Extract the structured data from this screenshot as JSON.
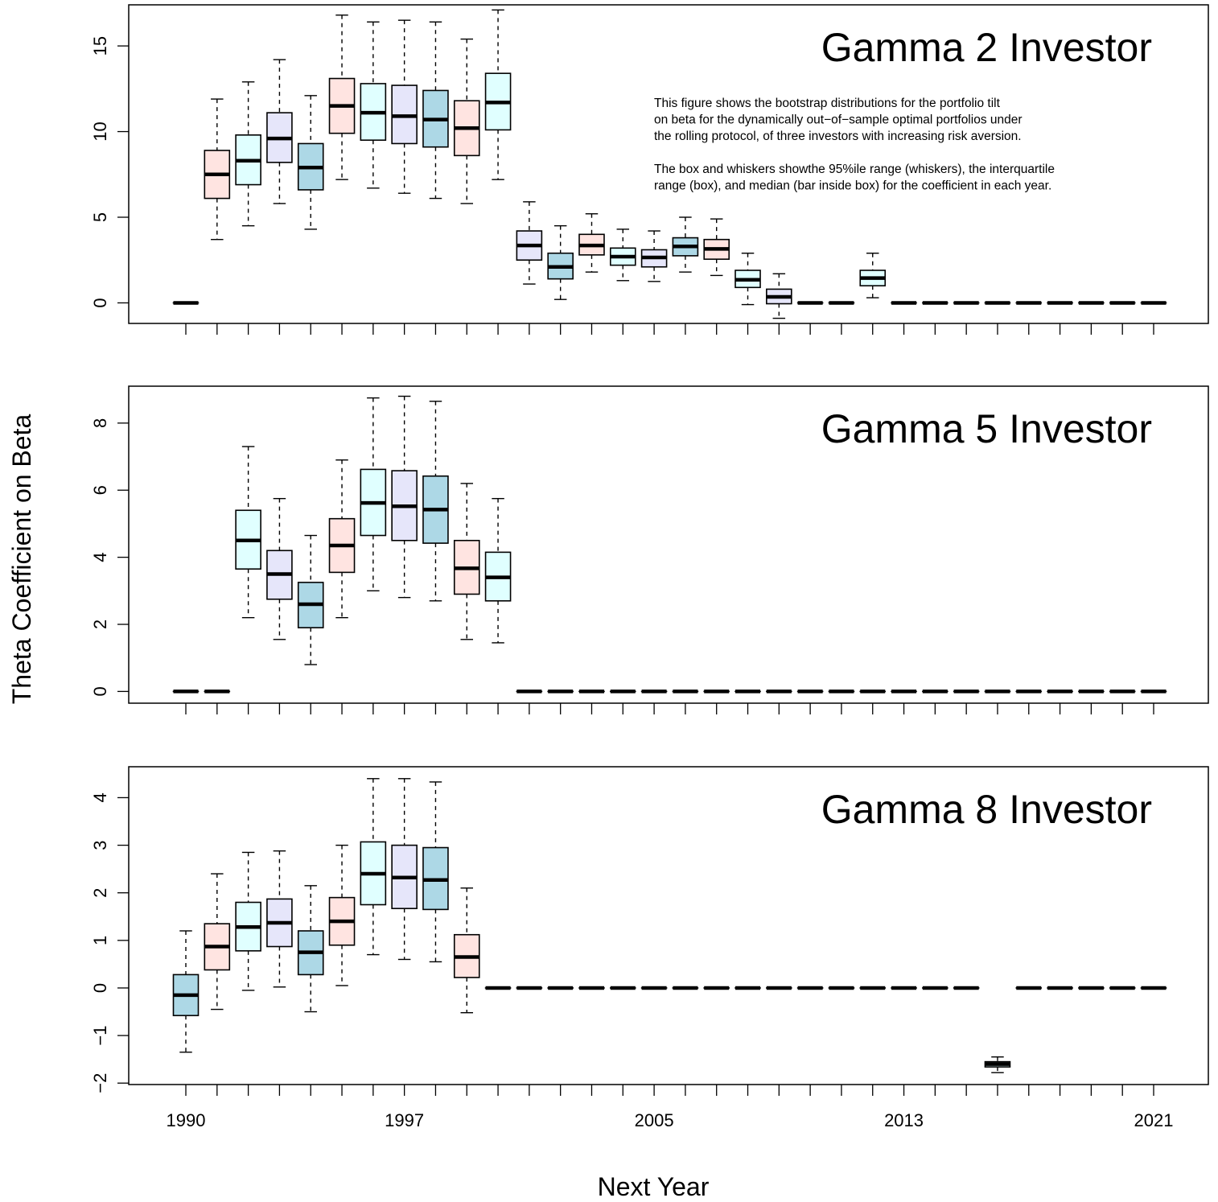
{
  "figure": {
    "ylabel": "Theta Coefficient on Beta",
    "xlabel": "Next Year",
    "note_lines": [
      "This figure shows the bootstrap distributions for the portfolio tilt",
      "on beta for the dynamically out−of−sample optimal portfolios under",
      "the rolling protocol, of three investors with increasing risk aversion.",
      "",
      "The box and whiskers showthe 95%ile range (whiskers), the interquartile",
      "range (box), and median (bar inside box) for the coefficient in each year."
    ],
    "x_tick_labels": [
      "1990",
      "1997",
      "2005",
      "2013",
      "2021"
    ]
  },
  "colors": {
    "pink": "#FFE4E1",
    "cyan": "#E0FFFF",
    "lavender": "#E6E6FA",
    "lightblue": "#ADD8E6"
  },
  "chart_data": [
    {
      "type": "boxplot",
      "title": "Gamma 2 Investor",
      "ylim": [
        -1.2,
        17.4
      ],
      "yticks": [
        0,
        5,
        10,
        15
      ],
      "years": [
        1990,
        1991,
        1992,
        1993,
        1994,
        1995,
        1996,
        1997,
        1998,
        1999,
        2000,
        2001,
        2002,
        2003,
        2004,
        2005,
        2006,
        2007,
        2008,
        2009,
        2010,
        2011,
        2012,
        2013,
        2014,
        2015,
        2016,
        2017,
        2018,
        2019,
        2020,
        2021
      ],
      "boxes": [
        [
          0,
          0,
          0,
          0,
          0,
          "pink"
        ],
        [
          3.7,
          6.1,
          7.5,
          8.9,
          11.9,
          "pink"
        ],
        [
          4.5,
          6.9,
          8.3,
          9.8,
          12.9,
          "cyan"
        ],
        [
          5.8,
          8.2,
          9.6,
          11.1,
          14.2,
          "lavender"
        ],
        [
          4.3,
          6.6,
          7.9,
          9.3,
          12.1,
          "lightblue"
        ],
        [
          7.2,
          9.9,
          11.5,
          13.1,
          16.8,
          "pink"
        ],
        [
          6.7,
          9.5,
          11.1,
          12.8,
          16.4,
          "cyan"
        ],
        [
          6.4,
          9.3,
          10.9,
          12.7,
          16.5,
          "lavender"
        ],
        [
          6.1,
          9.1,
          10.7,
          12.4,
          16.4,
          "lightblue"
        ],
        [
          5.8,
          8.6,
          10.2,
          11.8,
          15.4,
          "pink"
        ],
        [
          7.2,
          10.1,
          11.7,
          13.4,
          17.1,
          "cyan"
        ],
        [
          1.1,
          2.5,
          3.35,
          4.2,
          5.9,
          "lavender"
        ],
        [
          0.2,
          1.4,
          2.1,
          2.9,
          4.5,
          "lightblue"
        ],
        [
          1.8,
          2.8,
          3.35,
          4.0,
          5.2,
          "pink"
        ],
        [
          1.3,
          2.2,
          2.7,
          3.2,
          4.3,
          "cyan"
        ],
        [
          1.25,
          2.1,
          2.65,
          3.1,
          4.2,
          "lavender"
        ],
        [
          1.8,
          2.75,
          3.3,
          3.8,
          5.0,
          "lightblue"
        ],
        [
          1.6,
          2.55,
          3.15,
          3.7,
          4.9,
          "pink"
        ],
        [
          -0.1,
          0.9,
          1.35,
          1.9,
          2.9,
          "cyan"
        ],
        [
          -0.9,
          -0.05,
          0.35,
          0.8,
          1.7,
          "lavender"
        ],
        [
          0,
          0,
          0,
          0,
          0,
          "lightblue"
        ],
        [
          0,
          0,
          0,
          0,
          0,
          "pink"
        ],
        [
          0.3,
          1.0,
          1.45,
          1.9,
          2.9,
          "cyan"
        ],
        [
          0,
          0,
          0,
          0,
          0,
          "lavender"
        ],
        [
          0,
          0,
          0,
          0,
          0,
          "lightblue"
        ],
        [
          0,
          0,
          0,
          0,
          0,
          "pink"
        ],
        [
          0,
          0,
          0,
          0,
          0,
          "cyan"
        ],
        [
          0,
          0,
          0,
          0,
          0,
          "lavender"
        ],
        [
          0,
          0,
          0,
          0,
          0,
          "lightblue"
        ],
        [
          0,
          0,
          0,
          0,
          0,
          "pink"
        ],
        [
          0,
          0,
          0,
          0,
          0,
          "cyan"
        ],
        [
          0,
          0,
          0,
          0,
          0,
          "lavender"
        ]
      ]
    },
    {
      "type": "boxplot",
      "title": "Gamma 5 Investor",
      "ylim": [
        -0.35,
        9.1
      ],
      "yticks": [
        0,
        2,
        4,
        6,
        8
      ],
      "years": [
        1990,
        1991,
        1992,
        1993,
        1994,
        1995,
        1996,
        1997,
        1998,
        1999,
        2000,
        2001,
        2002,
        2003,
        2004,
        2005,
        2006,
        2007,
        2008,
        2009,
        2010,
        2011,
        2012,
        2013,
        2014,
        2015,
        2016,
        2017,
        2018,
        2019,
        2020,
        2021
      ],
      "boxes": [
        [
          0,
          0,
          0,
          0,
          0,
          "pink"
        ],
        [
          0,
          0,
          0,
          0,
          0,
          "pink"
        ],
        [
          2.2,
          3.65,
          4.5,
          5.4,
          7.3,
          "cyan"
        ],
        [
          1.55,
          2.75,
          3.5,
          4.2,
          5.75,
          "lavender"
        ],
        [
          0.8,
          1.9,
          2.6,
          3.25,
          4.65,
          "lightblue"
        ],
        [
          2.2,
          3.55,
          4.35,
          5.15,
          6.9,
          "pink"
        ],
        [
          3.0,
          4.65,
          5.62,
          6.62,
          8.75,
          "cyan"
        ],
        [
          2.8,
          4.5,
          5.52,
          6.58,
          8.8,
          "lavender"
        ],
        [
          2.7,
          4.42,
          5.42,
          6.42,
          8.65,
          "lightblue"
        ],
        [
          1.55,
          2.9,
          3.67,
          4.5,
          6.2,
          "pink"
        ],
        [
          1.45,
          2.7,
          3.4,
          4.15,
          5.75,
          "cyan"
        ],
        [
          0,
          0,
          0,
          0,
          0,
          "lavender"
        ],
        [
          0,
          0,
          0,
          0,
          0,
          "lightblue"
        ],
        [
          0,
          0,
          0,
          0,
          0,
          "pink"
        ],
        [
          0,
          0,
          0,
          0,
          0,
          "cyan"
        ],
        [
          0,
          0,
          0,
          0,
          0,
          "lavender"
        ],
        [
          0,
          0,
          0,
          0,
          0,
          "lightblue"
        ],
        [
          0,
          0,
          0,
          0,
          0,
          "pink"
        ],
        [
          0,
          0,
          0,
          0,
          0,
          "cyan"
        ],
        [
          0,
          0,
          0,
          0,
          0,
          "lavender"
        ],
        [
          0,
          0,
          0,
          0,
          0,
          "lightblue"
        ],
        [
          0,
          0,
          0,
          0,
          0,
          "pink"
        ],
        [
          0,
          0,
          0,
          0,
          0,
          "cyan"
        ],
        [
          0,
          0,
          0,
          0,
          0,
          "lavender"
        ],
        [
          0,
          0,
          0,
          0,
          0,
          "lightblue"
        ],
        [
          0,
          0,
          0,
          0,
          0,
          "pink"
        ],
        [
          0,
          0,
          0,
          0,
          0,
          "cyan"
        ],
        [
          0,
          0,
          0,
          0,
          0,
          "lavender"
        ],
        [
          0,
          0,
          0,
          0,
          0,
          "lightblue"
        ],
        [
          0,
          0,
          0,
          0,
          0,
          "pink"
        ],
        [
          0,
          0,
          0,
          0,
          0,
          "cyan"
        ],
        [
          0,
          0,
          0,
          0,
          0,
          "lavender"
        ]
      ]
    },
    {
      "type": "boxplot",
      "title": "Gamma 8 Investor",
      "ylim": [
        -2.03,
        4.65
      ],
      "yticks": [
        -2,
        -1,
        0,
        1,
        2,
        3,
        4
      ],
      "years": [
        1990,
        1991,
        1992,
        1993,
        1994,
        1995,
        1996,
        1997,
        1998,
        1999,
        2000,
        2001,
        2002,
        2003,
        2004,
        2005,
        2006,
        2007,
        2008,
        2009,
        2010,
        2011,
        2012,
        2013,
        2014,
        2015,
        2016,
        2017,
        2018,
        2019,
        2020,
        2021
      ],
      "boxes": [
        [
          -1.35,
          -0.58,
          -0.15,
          0.28,
          1.2,
          "lightblue"
        ],
        [
          -0.45,
          0.38,
          0.87,
          1.35,
          2.4,
          "pink"
        ],
        [
          -0.05,
          0.78,
          1.28,
          1.8,
          2.85,
          "cyan"
        ],
        [
          0.02,
          0.87,
          1.37,
          1.87,
          2.88,
          "lavender"
        ],
        [
          -0.5,
          0.28,
          0.75,
          1.2,
          2.15,
          "lightblue"
        ],
        [
          0.05,
          0.9,
          1.4,
          1.9,
          3.0,
          "pink"
        ],
        [
          0.7,
          1.75,
          2.4,
          3.07,
          4.4,
          "cyan"
        ],
        [
          0.6,
          1.67,
          2.32,
          3.0,
          4.4,
          "lavender"
        ],
        [
          0.55,
          1.65,
          2.27,
          2.95,
          4.33,
          "lightblue"
        ],
        [
          -0.52,
          0.22,
          0.65,
          1.12,
          2.1,
          "pink"
        ],
        [
          0,
          0,
          0,
          0,
          0,
          "cyan"
        ],
        [
          0,
          0,
          0,
          0,
          0,
          "lavender"
        ],
        [
          0,
          0,
          0,
          0,
          0,
          "lightblue"
        ],
        [
          0,
          0,
          0,
          0,
          0,
          "pink"
        ],
        [
          0,
          0,
          0,
          0,
          0,
          "cyan"
        ],
        [
          0,
          0,
          0,
          0,
          0,
          "lavender"
        ],
        [
          0,
          0,
          0,
          0,
          0,
          "lightblue"
        ],
        [
          0,
          0,
          0,
          0,
          0,
          "pink"
        ],
        [
          0,
          0,
          0,
          0,
          0,
          "cyan"
        ],
        [
          0,
          0,
          0,
          0,
          0,
          "lavender"
        ],
        [
          0,
          0,
          0,
          0,
          0,
          "lightblue"
        ],
        [
          0,
          0,
          0,
          0,
          0,
          "pink"
        ],
        [
          0,
          0,
          0,
          0,
          0,
          "cyan"
        ],
        [
          0,
          0,
          0,
          0,
          0,
          "lavender"
        ],
        [
          0,
          0,
          0,
          0,
          0,
          "lightblue"
        ],
        [
          0,
          0,
          0,
          0,
          0,
          "pink"
        ],
        [
          -1.78,
          -1.66,
          -1.6,
          -1.55,
          -1.45,
          "cyan"
        ],
        [
          0,
          0,
          0,
          0,
          0,
          "lavender"
        ],
        [
          0,
          0,
          0,
          0,
          0,
          "lightblue"
        ],
        [
          0,
          0,
          0,
          0,
          0,
          "pink"
        ],
        [
          0,
          0,
          0,
          0,
          0,
          "cyan"
        ],
        [
          0,
          0,
          0,
          0,
          0,
          "lavender"
        ]
      ]
    }
  ]
}
